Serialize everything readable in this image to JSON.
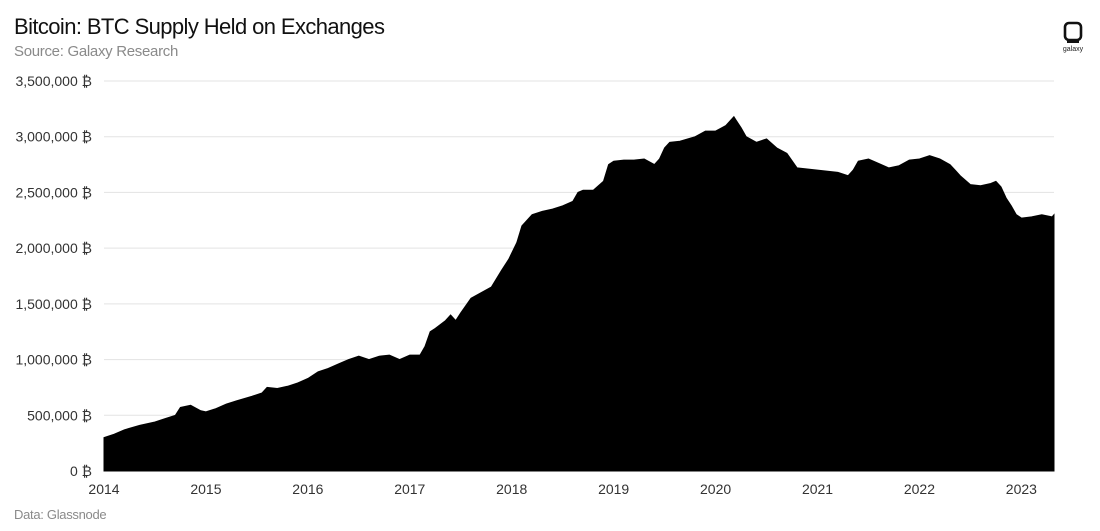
{
  "header": {
    "title": "Bitcoin: BTC Supply Held on Exchanges",
    "subtitle": "Source: Galaxy Research"
  },
  "footer": {
    "source": "Data: Glassnode"
  },
  "logo": {
    "icon": "galaxy-logo-icon",
    "word": "galaxy"
  },
  "colors": {
    "area": "#000000",
    "grid": "#e3e3e3",
    "text": "#333333"
  },
  "chart_data": {
    "type": "area",
    "title": "Bitcoin: BTC Supply Held on Exchanges",
    "subtitle": "Source: Galaxy Research",
    "xlabel": "",
    "ylabel": "",
    "ylim": [
      0,
      3500000
    ],
    "xlim": [
      2014.0,
      2023.32
    ],
    "grid": true,
    "x_ticks": [
      2014,
      2015,
      2016,
      2017,
      2018,
      2019,
      2020,
      2021,
      2022,
      2023
    ],
    "y_ticks": [
      {
        "value": 0,
        "label": "0 ₿"
      },
      {
        "value": 500000,
        "label": "500,000 ₿"
      },
      {
        "value": 1000000,
        "label": "1,000,000 ₿"
      },
      {
        "value": 1500000,
        "label": "1,500,000 ₿"
      },
      {
        "value": 2000000,
        "label": "2,000,000 ₿"
      },
      {
        "value": 2500000,
        "label": "2,500,000 ₿"
      },
      {
        "value": 3000000,
        "label": "3,000,000 ₿"
      },
      {
        "value": 3500000,
        "label": "3,500,000 ₿"
      }
    ],
    "series": [
      {
        "x": [
          2014.0,
          2014.1,
          2014.2,
          2014.35,
          2014.5,
          2014.6,
          2014.7,
          2014.75,
          2014.85,
          2014.95,
          2015.0,
          2015.1,
          2015.2,
          2015.3,
          2015.45,
          2015.55,
          2015.6,
          2015.7,
          2015.8,
          2015.9,
          2016.0,
          2016.1,
          2016.2,
          2016.3,
          2016.4,
          2016.5,
          2016.6,
          2016.7,
          2016.8,
          2016.9,
          2017.0,
          2017.1,
          2017.15,
          2017.2,
          2017.25,
          2017.35,
          2017.4,
          2017.45,
          2017.5,
          2017.6,
          2017.7,
          2017.8,
          2017.9,
          2017.97,
          2018.05,
          2018.1,
          2018.2,
          2018.3,
          2018.4,
          2018.5,
          2018.6,
          2018.65,
          2018.7,
          2018.8,
          2018.9,
          2018.95,
          2019.0,
          2019.1,
          2019.2,
          2019.3,
          2019.4,
          2019.45,
          2019.5,
          2019.55,
          2019.65,
          2019.8,
          2019.9,
          2020.0,
          2020.1,
          2020.15,
          2020.18,
          2020.2,
          2020.25,
          2020.3,
          2020.4,
          2020.5,
          2020.6,
          2020.7,
          2020.8,
          2020.9,
          2021.0,
          2021.1,
          2021.2,
          2021.3,
          2021.35,
          2021.4,
          2021.5,
          2021.6,
          2021.7,
          2021.8,
          2021.9,
          2022.0,
          2022.1,
          2022.2,
          2022.3,
          2022.35,
          2022.4,
          2022.5,
          2022.6,
          2022.7,
          2022.75,
          2022.8,
          2022.85,
          2022.9,
          2022.95,
          2023.0,
          2023.1,
          2023.2,
          2023.3,
          2023.32
        ],
        "values": [
          300000,
          330000,
          370000,
          410000,
          440000,
          470000,
          500000,
          570000,
          590000,
          540000,
          530000,
          560000,
          600000,
          630000,
          670000,
          700000,
          750000,
          740000,
          760000,
          790000,
          830000,
          890000,
          920000,
          960000,
          1000000,
          1030000,
          1000000,
          1030000,
          1040000,
          1000000,
          1040000,
          1040000,
          1120000,
          1250000,
          1280000,
          1350000,
          1400000,
          1350000,
          1420000,
          1550000,
          1600000,
          1650000,
          1800000,
          1900000,
          2050000,
          2200000,
          2300000,
          2330000,
          2350000,
          2380000,
          2420000,
          2500000,
          2520000,
          2520000,
          2600000,
          2750000,
          2780000,
          2790000,
          2790000,
          2800000,
          2750000,
          2800000,
          2900000,
          2950000,
          2960000,
          3000000,
          3050000,
          3050000,
          3100000,
          3150000,
          3180000,
          3150000,
          3080000,
          3000000,
          2950000,
          2980000,
          2900000,
          2850000,
          2720000,
          2710000,
          2700000,
          2690000,
          2680000,
          2650000,
          2700000,
          2780000,
          2800000,
          2760000,
          2720000,
          2740000,
          2790000,
          2800000,
          2830000,
          2800000,
          2750000,
          2700000,
          2650000,
          2570000,
          2560000,
          2580000,
          2600000,
          2550000,
          2450000,
          2380000,
          2300000,
          2270000,
          2280000,
          2300000,
          2280000,
          2300000
        ]
      }
    ]
  }
}
